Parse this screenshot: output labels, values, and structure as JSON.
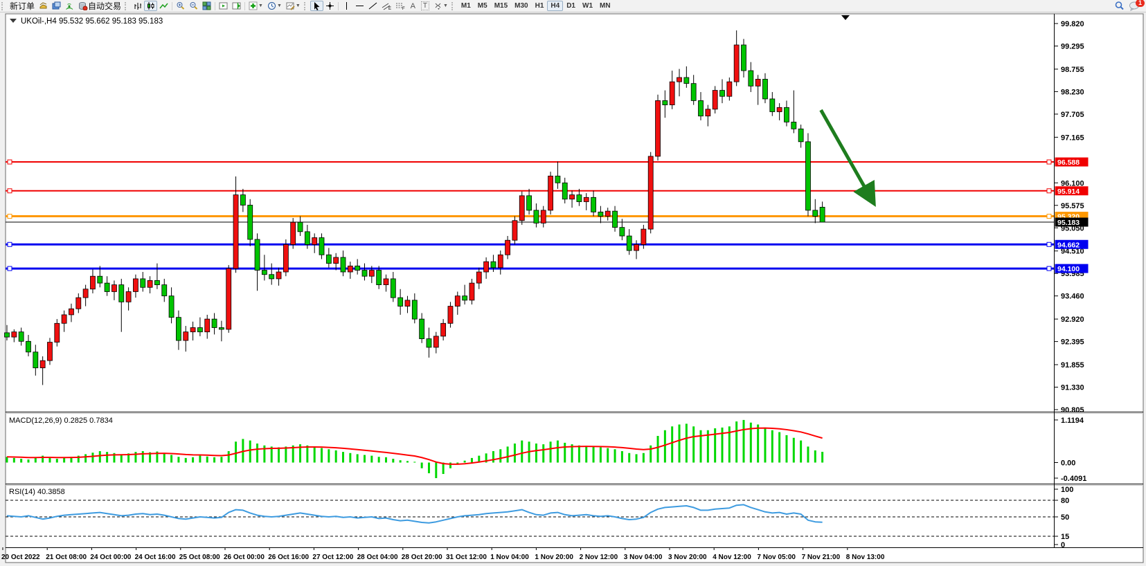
{
  "toolbar": {
    "new_order_label": "新订单",
    "autotrading_label": "自动交易",
    "text_tool_label": "A",
    "label_tool_label": "T",
    "timeframes": [
      "M1",
      "M5",
      "M15",
      "M30",
      "H1",
      "H4",
      "D1",
      "W1",
      "MN"
    ],
    "active_timeframe": "H4",
    "chat_badge": "1"
  },
  "chart_data": {
    "type": "candlestick",
    "symbol": "UKOil-",
    "period": "H4",
    "title_text": "UKOil-,H4  95.532 95.662 95.183 95.183",
    "quote": {
      "open": "95.532",
      "high": "95.662",
      "low": "95.183",
      "close": "95.183"
    },
    "price_axis_ticks": [
      "99.820",
      "99.295",
      "98.755",
      "98.230",
      "97.705",
      "97.165",
      "96.100",
      "95.575",
      "95.050",
      "94.510",
      "93.985",
      "93.460",
      "92.920",
      "92.395",
      "91.855",
      "91.330",
      "90.805"
    ],
    "ylim": [
      90.756,
      100.046
    ],
    "grid": false,
    "levels": [
      {
        "price": 96.588,
        "label": "96.588",
        "color": "#f00000",
        "width": 2
      },
      {
        "price": 95.914,
        "label": "95.914",
        "color": "#f00000",
        "width": 2
      },
      {
        "price": 95.32,
        "label": "95.320",
        "color": "#ff9800",
        "width": 3
      },
      {
        "price": 94.662,
        "label": "94.662",
        "color": "#0000f0",
        "width": 3
      },
      {
        "price": 94.1,
        "label": "94.100",
        "color": "#0000f0",
        "width": 3
      }
    ],
    "current_price": {
      "price": 95.183,
      "label": "95.183",
      "color": "#000000"
    },
    "colors": {
      "bull": "#f01010",
      "bear": "#00c400",
      "wick": "#000000",
      "macd_hist": "#00d800",
      "macd_signal": "#ff0000",
      "rsi_line": "#3d9be0",
      "arrow": "#1e7d1e"
    },
    "x_labels": [
      "20 Oct 2022",
      "21 Oct 08:00",
      "24 Oct 00:00",
      "24 Oct 16:00",
      "25 Oct 08:00",
      "26 Oct 00:00",
      "26 Oct 16:00",
      "27 Oct 12:00",
      "28 Oct 04:00",
      "28 Oct 20:00",
      "31 Oct 12:00",
      "1 Nov 04:00",
      "1 Nov 20:00",
      "2 Nov 12:00",
      "3 Nov 04:00",
      "3 Nov 20:00",
      "4 Nov 12:00",
      "7 Nov 05:00",
      "7 Nov 21:00",
      "8 Nov 13:00"
    ],
    "candles": [
      [
        92.6,
        92.78,
        92.42,
        92.5
      ],
      [
        92.5,
        92.68,
        92.38,
        92.62
      ],
      [
        92.62,
        92.72,
        92.3,
        92.4
      ],
      [
        92.4,
        92.55,
        92.05,
        92.15
      ],
      [
        92.15,
        92.32,
        91.6,
        91.78
      ],
      [
        91.78,
        92.05,
        91.38,
        91.95
      ],
      [
        91.95,
        92.48,
        91.85,
        92.38
      ],
      [
        92.38,
        92.92,
        92.28,
        92.82
      ],
      [
        92.82,
        93.12,
        92.62,
        93.02
      ],
      [
        93.02,
        93.28,
        92.85,
        93.16
      ],
      [
        93.16,
        93.52,
        93.06,
        93.42
      ],
      [
        93.42,
        93.72,
        93.22,
        93.62
      ],
      [
        93.62,
        94.08,
        93.52,
        93.92
      ],
      [
        93.92,
        94.16,
        93.66,
        93.76
      ],
      [
        93.76,
        93.92,
        93.46,
        93.56
      ],
      [
        93.56,
        93.82,
        93.36,
        93.72
      ],
      [
        93.72,
        93.86,
        92.62,
        93.32
      ],
      [
        93.32,
        93.66,
        93.12,
        93.56
      ],
      [
        93.56,
        93.96,
        93.42,
        93.86
      ],
      [
        93.86,
        94.02,
        93.56,
        93.66
      ],
      [
        93.66,
        93.92,
        93.52,
        93.82
      ],
      [
        93.82,
        94.22,
        93.62,
        93.72
      ],
      [
        93.72,
        93.86,
        93.32,
        93.46
      ],
      [
        93.46,
        93.66,
        92.82,
        92.96
      ],
      [
        92.96,
        93.12,
        92.2,
        92.42
      ],
      [
        92.42,
        92.76,
        92.16,
        92.62
      ],
      [
        92.62,
        92.86,
        92.42,
        92.72
      ],
      [
        92.72,
        92.96,
        92.52,
        92.62
      ],
      [
        92.62,
        93.02,
        92.46,
        92.92
      ],
      [
        92.92,
        93.06,
        92.56,
        92.72
      ],
      [
        92.72,
        92.88,
        92.4,
        92.68
      ],
      [
        92.68,
        94.18,
        92.6,
        94.1
      ],
      [
        94.1,
        96.25,
        94.0,
        95.82
      ],
      [
        95.82,
        95.96,
        95.42,
        95.58
      ],
      [
        95.58,
        95.72,
        94.62,
        94.78
      ],
      [
        94.78,
        94.92,
        93.58,
        94.06
      ],
      [
        94.06,
        94.42,
        93.82,
        93.96
      ],
      [
        93.96,
        94.22,
        93.72,
        93.86
      ],
      [
        93.86,
        94.12,
        93.7,
        94.02
      ],
      [
        94.02,
        94.78,
        93.92,
        94.66
      ],
      [
        94.66,
        95.28,
        94.56,
        95.18
      ],
      [
        95.18,
        95.32,
        94.86,
        94.96
      ],
      [
        94.96,
        95.12,
        94.56,
        94.66
      ],
      [
        94.66,
        94.92,
        94.46,
        94.82
      ],
      [
        94.82,
        94.92,
        94.32,
        94.42
      ],
      [
        94.42,
        94.58,
        94.12,
        94.22
      ],
      [
        94.22,
        94.46,
        94.06,
        94.36
      ],
      [
        94.36,
        94.52,
        93.92,
        94.02
      ],
      [
        94.02,
        94.26,
        93.86,
        94.16
      ],
      [
        94.16,
        94.32,
        93.96,
        94.06
      ],
      [
        94.06,
        94.22,
        93.82,
        93.92
      ],
      [
        93.92,
        94.16,
        93.76,
        94.06
      ],
      [
        94.06,
        94.16,
        93.62,
        93.72
      ],
      [
        93.72,
        93.96,
        93.56,
        93.86
      ],
      [
        93.86,
        94.02,
        93.32,
        93.42
      ],
      [
        93.42,
        93.62,
        93.02,
        93.22
      ],
      [
        93.22,
        93.46,
        93.06,
        93.36
      ],
      [
        93.36,
        93.52,
        92.82,
        92.92
      ],
      [
        92.92,
        93.06,
        92.36,
        92.46
      ],
      [
        92.46,
        92.72,
        92.02,
        92.26
      ],
      [
        92.26,
        92.62,
        92.12,
        92.52
      ],
      [
        92.52,
        92.92,
        92.42,
        92.82
      ],
      [
        92.82,
        93.32,
        92.72,
        93.22
      ],
      [
        93.22,
        93.56,
        93.02,
        93.46
      ],
      [
        93.46,
        93.72,
        93.26,
        93.36
      ],
      [
        93.36,
        93.86,
        93.26,
        93.76
      ],
      [
        93.76,
        94.12,
        93.62,
        94.02
      ],
      [
        94.02,
        94.36,
        93.86,
        94.26
      ],
      [
        94.26,
        94.42,
        94.02,
        94.12
      ],
      [
        94.12,
        94.52,
        93.96,
        94.42
      ],
      [
        94.42,
        94.86,
        94.32,
        94.76
      ],
      [
        94.76,
        95.32,
        94.66,
        95.22
      ],
      [
        95.22,
        95.9,
        95.12,
        95.8
      ],
      [
        95.8,
        95.96,
        95.36,
        95.46
      ],
      [
        95.46,
        95.62,
        95.06,
        95.16
      ],
      [
        95.16,
        95.56,
        95.06,
        95.46
      ],
      [
        95.46,
        96.36,
        95.36,
        96.26
      ],
      [
        96.26,
        96.6,
        95.96,
        96.1
      ],
      [
        96.1,
        96.22,
        95.62,
        95.72
      ],
      [
        95.72,
        95.92,
        95.52,
        95.82
      ],
      [
        95.82,
        95.96,
        95.56,
        95.66
      ],
      [
        95.66,
        95.86,
        95.46,
        95.76
      ],
      [
        95.76,
        95.92,
        95.32,
        95.42
      ],
      [
        95.42,
        95.56,
        95.16,
        95.32
      ],
      [
        95.32,
        95.52,
        95.22,
        95.44
      ],
      [
        95.44,
        95.56,
        94.96,
        95.06
      ],
      [
        95.06,
        95.26,
        94.76,
        94.86
      ],
      [
        94.86,
        95.02,
        94.42,
        94.52
      ],
      [
        94.52,
        94.76,
        94.32,
        94.66
      ],
      [
        94.66,
        95.12,
        94.56,
        95.02
      ],
      [
        95.02,
        96.82,
        94.92,
        96.72
      ],
      [
        96.72,
        98.16,
        96.62,
        98.02
      ],
      [
        98.02,
        98.26,
        97.62,
        97.92
      ],
      [
        97.92,
        98.72,
        97.82,
        98.46
      ],
      [
        98.46,
        98.76,
        98.12,
        98.56
      ],
      [
        98.56,
        98.82,
        98.32,
        98.42
      ],
      [
        98.42,
        98.62,
        97.92,
        98.02
      ],
      [
        98.02,
        98.22,
        97.56,
        97.66
      ],
      [
        97.66,
        97.92,
        97.42,
        97.82
      ],
      [
        97.82,
        98.36,
        97.72,
        98.26
      ],
      [
        98.26,
        98.52,
        97.96,
        98.12
      ],
      [
        98.12,
        98.56,
        98.02,
        98.46
      ],
      [
        98.46,
        99.66,
        98.36,
        99.32
      ],
      [
        99.32,
        99.46,
        98.56,
        98.72
      ],
      [
        98.72,
        98.92,
        98.22,
        98.36
      ],
      [
        98.36,
        98.62,
        97.92,
        98.52
      ],
      [
        98.52,
        98.66,
        97.96,
        98.06
      ],
      [
        98.06,
        98.22,
        97.66,
        97.76
      ],
      [
        97.76,
        97.96,
        97.56,
        97.86
      ],
      [
        97.86,
        98.02,
        97.42,
        97.52
      ],
      [
        97.52,
        98.26,
        97.26,
        97.36
      ],
      [
        97.36,
        97.46,
        96.92,
        97.06
      ],
      [
        97.06,
        97.26,
        95.32,
        95.46
      ],
      [
        95.46,
        95.72,
        95.16,
        95.32
      ],
      [
        95.532,
        95.662,
        95.183,
        95.183
      ]
    ],
    "macd": {
      "label": "MACD(12,26,9) 0.2825 0.7834",
      "value": 0.2825,
      "signal_value": 0.7834,
      "axis_ticks": [
        "1.1194",
        "0.00",
        "-0.4091"
      ],
      "range": [
        -0.4091,
        1.1194
      ],
      "values": [
        0.15,
        0.12,
        0.1,
        0.08,
        0.12,
        0.18,
        0.14,
        0.1,
        0.12,
        0.15,
        0.18,
        0.22,
        0.26,
        0.3,
        0.28,
        0.25,
        0.22,
        0.24,
        0.28,
        0.3,
        0.27,
        0.29,
        0.25,
        0.2,
        0.15,
        0.12,
        0.14,
        0.18,
        0.16,
        0.14,
        0.15,
        0.3,
        0.55,
        0.62,
        0.58,
        0.5,
        0.45,
        0.42,
        0.4,
        0.42,
        0.45,
        0.48,
        0.45,
        0.42,
        0.38,
        0.35,
        0.32,
        0.28,
        0.25,
        0.22,
        0.2,
        0.18,
        0.15,
        0.14,
        0.1,
        0.06,
        0.04,
        0.02,
        -0.15,
        -0.28,
        -0.4091,
        -0.3,
        -0.15,
        -0.05,
        0.05,
        0.12,
        0.18,
        0.24,
        0.3,
        0.35,
        0.42,
        0.5,
        0.58,
        0.55,
        0.5,
        0.48,
        0.55,
        0.58,
        0.52,
        0.48,
        0.45,
        0.44,
        0.42,
        0.4,
        0.38,
        0.35,
        0.3,
        0.25,
        0.22,
        0.25,
        0.45,
        0.7,
        0.85,
        0.95,
        1.0,
        1.02,
        0.95,
        0.85,
        0.85,
        0.9,
        0.92,
        0.95,
        1.08,
        1.1194,
        1.05,
        1.0,
        0.92,
        0.85,
        0.8,
        0.72,
        0.65,
        0.58,
        0.42,
        0.32,
        0.2825
      ]
    },
    "rsi": {
      "label": "RSI(14) 40.3858",
      "value": 40.3858,
      "axis_ticks": [
        "100",
        "80",
        "50",
        "15",
        "0"
      ],
      "dashed_levels": [
        80,
        50,
        15
      ],
      "range": [
        0,
        100
      ],
      "values": [
        52,
        51,
        50,
        52,
        49,
        46,
        48,
        51,
        53,
        54,
        55,
        56,
        57,
        58,
        56,
        54,
        52,
        53,
        55,
        56,
        54,
        55,
        53,
        50,
        47,
        46,
        48,
        50,
        49,
        48,
        49,
        58,
        63,
        62,
        57,
        53,
        51,
        50,
        51,
        53,
        55,
        57,
        55,
        53,
        51,
        50,
        51,
        49,
        50,
        48,
        49,
        50,
        47,
        48,
        45,
        43,
        44,
        42,
        40,
        39,
        41,
        44,
        47,
        50,
        52,
        53,
        54,
        56,
        57,
        58,
        59,
        61,
        63,
        58,
        54,
        53,
        57,
        58,
        54,
        52,
        53,
        54,
        52,
        51,
        52,
        50,
        47,
        45,
        46,
        49,
        58,
        64,
        67,
        68,
        69,
        70,
        67,
        62,
        62,
        64,
        65,
        66,
        71,
        72,
        67,
        63,
        59,
        57,
        58,
        55,
        57,
        55,
        44,
        41,
        40.3858
      ]
    },
    "annotation_arrow": {
      "from_bar": 113.8,
      "from_price": 97.8,
      "to_bar": 121.0,
      "to_price": 95.68
    }
  }
}
